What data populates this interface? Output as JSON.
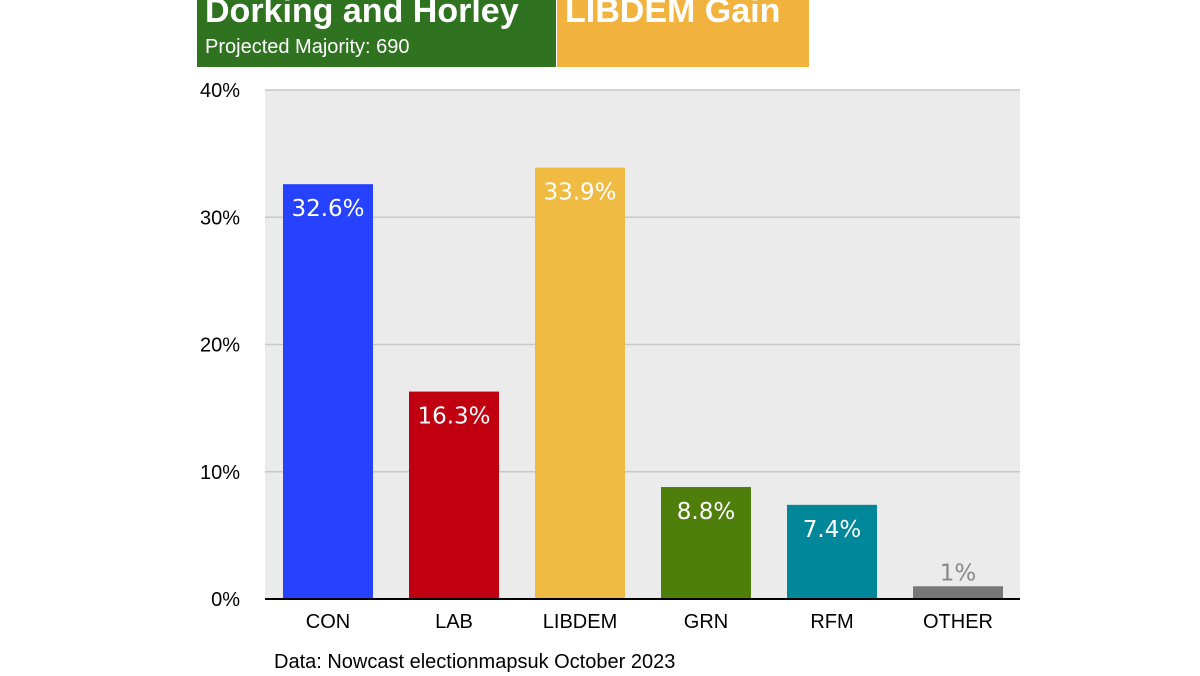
{
  "header": {
    "constituency": "Dorking and Horley",
    "majority": "Projected Majority: 690",
    "result": "LIBDEM Gain",
    "colors": {
      "constituency_bg": "#2f7321",
      "result_bg": "#f2b23e"
    }
  },
  "source": "Data: Nowcast electionmapsuk October 2023",
  "chart_data": {
    "type": "bar",
    "categories": [
      "CON",
      "LAB",
      "LIBDEM",
      "GRN",
      "RFM",
      "OTHER"
    ],
    "values": [
      32.6,
      16.3,
      33.9,
      8.8,
      7.4,
      1
    ],
    "data_labels": [
      "32.6%",
      "16.3%",
      "33.9%",
      "8.8%",
      "7.4%",
      "1%"
    ],
    "colors": [
      "#2642ff",
      "#c00010",
      "#f0bb42",
      "#4e7f0a",
      "#00889a",
      "#777777"
    ],
    "ylim": [
      0,
      40
    ],
    "yticks": [
      0,
      10,
      20,
      30,
      40
    ],
    "ytick_labels": [
      "0%",
      "10%",
      "20%",
      "30%",
      "40%"
    ],
    "grid": true,
    "background": "#ebebeb"
  }
}
